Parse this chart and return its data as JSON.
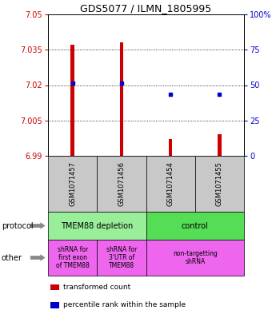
{
  "title": "GDS5077 / ILMN_1805995",
  "samples": [
    "GSM1071457",
    "GSM1071456",
    "GSM1071454",
    "GSM1071455"
  ],
  "red_values": [
    7.037,
    7.038,
    6.997,
    6.999
  ],
  "blue_values": [
    7.021,
    7.021,
    7.016,
    7.016
  ],
  "red_base": 6.99,
  "ylim_min": 6.99,
  "ylim_max": 7.05,
  "yticks_left": [
    6.99,
    7.005,
    7.02,
    7.035,
    7.05
  ],
  "yticks_right": [
    0,
    25,
    50,
    75,
    100
  ],
  "sample_bg_color": "#C8C8C8",
  "bar_color": "#CC0000",
  "dot_color": "#0000CC",
  "legend_red": "transformed count",
  "legend_blue": "percentile rank within the sample",
  "proto_labels": [
    "TMEM88 depletion",
    "control"
  ],
  "proto_ncols": [
    2,
    2
  ],
  "proto_colors": [
    "#99EE99",
    "#55DD55"
  ],
  "other_labels": [
    "shRNA for\nfirst exon\nof TMEM88",
    "shRNA for\n3'UTR of\nTMEM88",
    "non-targetting\nshRNA"
  ],
  "other_ncols": [
    1,
    1,
    2
  ],
  "other_color": "#EE66EE"
}
